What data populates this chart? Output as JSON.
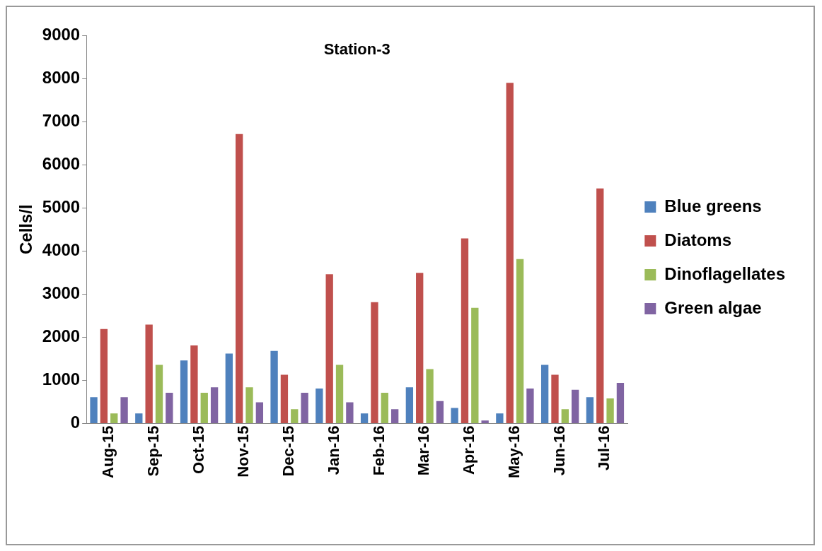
{
  "chart_data": {
    "type": "bar",
    "title": "Station-3",
    "ylabel": "Cells/l",
    "categories": [
      "Aug-15",
      "Sep-15",
      "Oct-15",
      "Nov-15",
      "Dec-15",
      "Jan-16",
      "Feb-16",
      "Mar-16",
      "Apr-16",
      "May-16",
      "Jun-16",
      "Jul-16"
    ],
    "series": [
      {
        "name": "Blue greens",
        "color": "#4f81bd",
        "values": [
          610,
          230,
          1460,
          1620,
          1680,
          810,
          230,
          840,
          360,
          230,
          1360,
          610
        ]
      },
      {
        "name": "Diatoms",
        "color": "#c0504d",
        "values": [
          2190,
          2290,
          1810,
          6710,
          1130,
          3460,
          2810,
          3490,
          4290,
          7900,
          1130,
          5450
        ]
      },
      {
        "name": "Dinoflagellates",
        "color": "#9bbb59",
        "values": [
          230,
          1360,
          710,
          840,
          330,
          1360,
          710,
          1260,
          2680,
          3810,
          330,
          580
        ]
      },
      {
        "name": "Green algae",
        "color": "#8064a2",
        "values": [
          610,
          710,
          840,
          490,
          710,
          490,
          330,
          520,
          70,
          810,
          780,
          940
        ]
      }
    ],
    "ylim": [
      0,
      9000
    ],
    "yticks": [
      0,
      1000,
      2000,
      3000,
      4000,
      5000,
      6000,
      7000,
      8000,
      9000
    ],
    "grid": false,
    "legend": "right"
  }
}
